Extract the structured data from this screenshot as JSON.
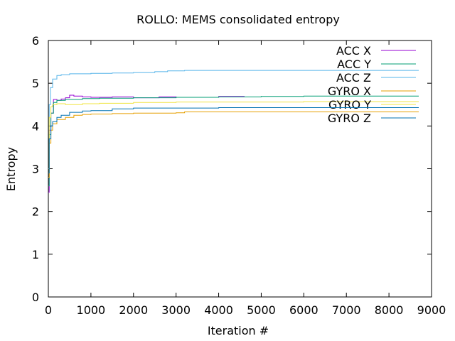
{
  "chart_data": {
    "type": "line",
    "title": "ROLLO: MEMS consolidated entropy",
    "xlabel": "Iteration #",
    "ylabel": "Entropy",
    "xlim": [
      0,
      9000
    ],
    "ylim": [
      0,
      6
    ],
    "xticks": [
      0,
      1000,
      2000,
      3000,
      4000,
      5000,
      6000,
      7000,
      8000,
      9000
    ],
    "yticks": [
      0,
      1,
      2,
      3,
      4,
      5,
      6
    ],
    "grid": false,
    "legend_position": "top-right",
    "series": [
      {
        "name": "ACC X",
        "color": "#9400d3",
        "x": [
          0,
          20,
          60,
          120,
          200,
          300,
          400,
          500,
          600,
          800,
          1000,
          1500,
          2000,
          2600,
          3000,
          4000,
          4600
        ],
        "y": [
          2.45,
          3.9,
          4.3,
          4.62,
          4.6,
          4.63,
          4.66,
          4.72,
          4.7,
          4.68,
          4.67,
          4.68,
          4.66,
          4.68,
          4.67,
          4.69,
          4.7
        ]
      },
      {
        "name": "ACC Y",
        "color": "#009e73",
        "x": [
          0,
          20,
          60,
          120,
          200,
          400,
          800,
          1200,
          2000,
          3000,
          4000,
          5000,
          6000,
          7000,
          8000,
          8700
        ],
        "y": [
          2.6,
          3.8,
          4.3,
          4.55,
          4.6,
          4.62,
          4.64,
          4.65,
          4.66,
          4.67,
          4.68,
          4.69,
          4.7,
          4.7,
          4.7,
          4.7
        ]
      },
      {
        "name": "ACC Z",
        "color": "#56b4e9",
        "x": [
          0,
          20,
          50,
          100,
          200,
          300,
          500,
          800,
          1000,
          1500,
          2000,
          2500,
          2800,
          3200,
          4000,
          5000,
          6000,
          7000,
          8000,
          8700
        ],
        "y": [
          3.0,
          4.5,
          4.9,
          5.1,
          5.18,
          5.2,
          5.22,
          5.22,
          5.23,
          5.24,
          5.25,
          5.27,
          5.29,
          5.3,
          5.3,
          5.3,
          5.3,
          5.3,
          5.3,
          5.3
        ]
      },
      {
        "name": "GYRO X",
        "color": "#e69f00",
        "x": [
          0,
          20,
          60,
          100,
          200,
          400,
          600,
          800,
          1000,
          1500,
          2000,
          3000,
          3200,
          4000,
          5000,
          6000,
          7000,
          8000,
          8700
        ],
        "y": [
          2.8,
          3.6,
          3.9,
          4.05,
          4.15,
          4.2,
          4.25,
          4.27,
          4.28,
          4.29,
          4.3,
          4.31,
          4.33,
          4.33,
          4.33,
          4.33,
          4.33,
          4.33,
          4.33
        ]
      },
      {
        "name": "GYRO Y",
        "color": "#f0e442",
        "x": [
          0,
          20,
          60,
          100,
          200,
          400,
          800,
          1200,
          2000,
          3000,
          4000,
          5000,
          6000,
          7000,
          8000,
          8700
        ],
        "y": [
          2.9,
          4.2,
          4.45,
          4.5,
          4.52,
          4.5,
          4.52,
          4.53,
          4.55,
          4.56,
          4.56,
          4.56,
          4.57,
          4.57,
          4.57,
          4.57
        ]
      },
      {
        "name": "GYRO Z",
        "color": "#0072b2",
        "x": [
          0,
          20,
          60,
          100,
          200,
          300,
          500,
          800,
          1000,
          1500,
          2000,
          3000,
          4000,
          5000,
          6000,
          7000,
          8000,
          8700
        ],
        "y": [
          2.9,
          3.7,
          4.0,
          4.1,
          4.2,
          4.25,
          4.32,
          4.35,
          4.36,
          4.4,
          4.42,
          4.42,
          4.43,
          4.43,
          4.43,
          4.43,
          4.43,
          4.43
        ]
      }
    ]
  }
}
